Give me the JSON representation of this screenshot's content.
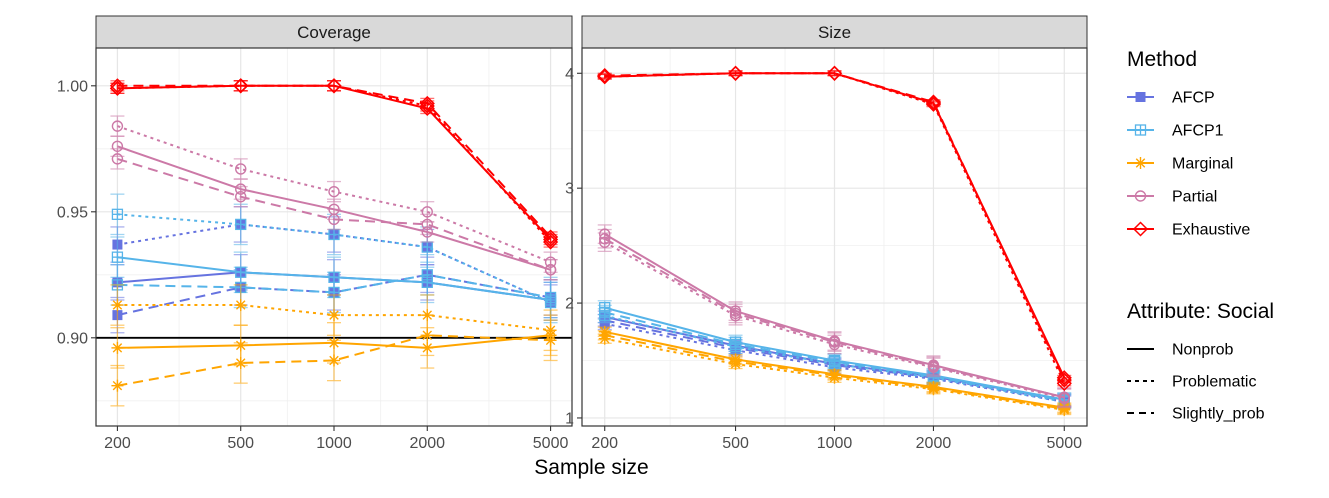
{
  "chart_data": {
    "type": "line",
    "xlabel": "Sample size",
    "x": [
      200,
      500,
      1000,
      2000,
      5000
    ],
    "x_scale": "log",
    "methods": [
      {
        "name": "AFCP",
        "color": "#6673e0",
        "marker": "filled-square"
      },
      {
        "name": "AFCP1",
        "color": "#56b4e9",
        "marker": "square-cross"
      },
      {
        "name": "Marginal",
        "color": "#ffa500",
        "marker": "asterisk"
      },
      {
        "name": "Partial",
        "color": "#cc79a7",
        "marker": "open-circle"
      },
      {
        "name": "Exhaustive",
        "color": "#ff0000",
        "marker": "open-diamond"
      }
    ],
    "attributes": [
      {
        "name": "Nonprob",
        "dash": "solid"
      },
      {
        "name": "Problematic",
        "dash": "dotted"
      },
      {
        "name": "Slightly_prob",
        "dash": "dashed"
      }
    ],
    "legend": {
      "method_title": "Method",
      "attribute_title": "Attribute: Social",
      "placement": "right"
    },
    "panels": [
      {
        "strip": "Coverage",
        "ylim": [
          0.865,
          1.015
        ],
        "yticks": [
          0.9,
          0.95,
          1.0
        ],
        "ytick_labels": [
          "0.90",
          "0.95",
          "1.00"
        ],
        "hline": 0.9,
        "series": [
          {
            "method": "AFCP",
            "attribute": "Nonprob",
            "values": [
              0.922,
              0.926,
              0.924,
              0.922,
              0.915
            ],
            "err": 0.007
          },
          {
            "method": "AFCP",
            "attribute": "Problematic",
            "values": [
              0.937,
              0.945,
              0.941,
              0.936,
              0.914
            ],
            "err": 0.007
          },
          {
            "method": "AFCP",
            "attribute": "Slightly_prob",
            "values": [
              0.909,
              0.92,
              0.918,
              0.925,
              0.916
            ],
            "err": 0.007
          },
          {
            "method": "AFCP1",
            "attribute": "Nonprob",
            "values": [
              0.932,
              0.926,
              0.924,
              0.922,
              0.915
            ],
            "err": 0.008
          },
          {
            "method": "AFCP1",
            "attribute": "Problematic",
            "values": [
              0.949,
              0.945,
              0.941,
              0.936,
              0.914
            ],
            "err": 0.008
          },
          {
            "method": "AFCP1",
            "attribute": "Slightly_prob",
            "values": [
              0.921,
              0.92,
              0.918,
              0.925,
              0.916
            ],
            "err": 0.008
          },
          {
            "method": "Marginal",
            "attribute": "Nonprob",
            "values": [
              0.896,
              0.897,
              0.898,
              0.896,
              0.901
            ],
            "err": 0.008
          },
          {
            "method": "Marginal",
            "attribute": "Problematic",
            "values": [
              0.913,
              0.913,
              0.909,
              0.909,
              0.903
            ],
            "err": 0.008
          },
          {
            "method": "Marginal",
            "attribute": "Slightly_prob",
            "values": [
              0.881,
              0.89,
              0.891,
              0.901,
              0.899
            ],
            "err": 0.008
          },
          {
            "method": "Partial",
            "attribute": "Nonprob",
            "values": [
              0.976,
              0.959,
              0.951,
              0.942,
              0.927
            ],
            "err": 0.004
          },
          {
            "method": "Partial",
            "attribute": "Problematic",
            "values": [
              0.984,
              0.967,
              0.958,
              0.95,
              0.93
            ],
            "err": 0.004
          },
          {
            "method": "Partial",
            "attribute": "Slightly_prob",
            "values": [
              0.971,
              0.956,
              0.947,
              0.945,
              0.927
            ],
            "err": 0.004
          },
          {
            "method": "Exhaustive",
            "attribute": "Nonprob",
            "values": [
              0.999,
              1.0,
              1.0,
              0.991,
              0.939
            ],
            "err": 0.002
          },
          {
            "method": "Exhaustive",
            "attribute": "Problematic",
            "values": [
              0.999,
              1.0,
              1.0,
              0.992,
              0.938
            ],
            "err": 0.002
          },
          {
            "method": "Exhaustive",
            "attribute": "Slightly_prob",
            "values": [
              1.0,
              1.0,
              1.0,
              0.993,
              0.94
            ],
            "err": 0.002
          }
        ]
      },
      {
        "strip": "Size",
        "ylim": [
          0.93,
          4.22
        ],
        "yticks": [
          1,
          2,
          3,
          4
        ],
        "ytick_labels": [
          "1",
          "2",
          "3",
          "4"
        ],
        "series": [
          {
            "method": "AFCP",
            "attribute": "Nonprob",
            "values": [
              1.88,
              1.63,
              1.47,
              1.36,
              1.16
            ],
            "err": 0.05
          },
          {
            "method": "AFCP",
            "attribute": "Problematic",
            "values": [
              1.82,
              1.59,
              1.44,
              1.34,
              1.14
            ],
            "err": 0.05
          },
          {
            "method": "AFCP",
            "attribute": "Slightly_prob",
            "values": [
              1.85,
              1.61,
              1.46,
              1.35,
              1.15
            ],
            "err": 0.05
          },
          {
            "method": "AFCP1",
            "attribute": "Nonprob",
            "values": [
              1.96,
              1.66,
              1.5,
              1.37,
              1.16
            ],
            "err": 0.06
          },
          {
            "method": "AFCP1",
            "attribute": "Problematic",
            "values": [
              1.89,
              1.62,
              1.47,
              1.35,
              1.14
            ],
            "err": 0.06
          },
          {
            "method": "AFCP1",
            "attribute": "Slightly_prob",
            "values": [
              1.92,
              1.64,
              1.49,
              1.36,
              1.15
            ],
            "err": 0.06
          },
          {
            "method": "Marginal",
            "attribute": "Nonprob",
            "values": [
              1.75,
              1.51,
              1.38,
              1.27,
              1.09
            ],
            "err": 0.04
          },
          {
            "method": "Marginal",
            "attribute": "Problematic",
            "values": [
              1.69,
              1.47,
              1.35,
              1.25,
              1.07
            ],
            "err": 0.04
          },
          {
            "method": "Marginal",
            "attribute": "Slightly_prob",
            "values": [
              1.72,
              1.49,
              1.37,
              1.26,
              1.08
            ],
            "err": 0.04
          },
          {
            "method": "Partial",
            "attribute": "Nonprob",
            "values": [
              2.6,
              1.93,
              1.67,
              1.46,
              1.18
            ],
            "err": 0.08
          },
          {
            "method": "Partial",
            "attribute": "Problematic",
            "values": [
              2.53,
              1.89,
              1.64,
              1.44,
              1.17
            ],
            "err": 0.08
          },
          {
            "method": "Partial",
            "attribute": "Slightly_prob",
            "values": [
              2.56,
              1.91,
              1.66,
              1.45,
              1.18
            ],
            "err": 0.08
          },
          {
            "method": "Exhaustive",
            "attribute": "Nonprob",
            "values": [
              3.97,
              4.0,
              4.0,
              3.74,
              1.35
            ],
            "err": 0.02
          },
          {
            "method": "Exhaustive",
            "attribute": "Problematic",
            "values": [
              3.97,
              4.0,
              4.0,
              3.73,
              1.3
            ],
            "err": 0.02
          },
          {
            "method": "Exhaustive",
            "attribute": "Slightly_prob",
            "values": [
              3.98,
              4.0,
              4.0,
              3.75,
              1.33
            ],
            "err": 0.02
          }
        ]
      }
    ]
  }
}
